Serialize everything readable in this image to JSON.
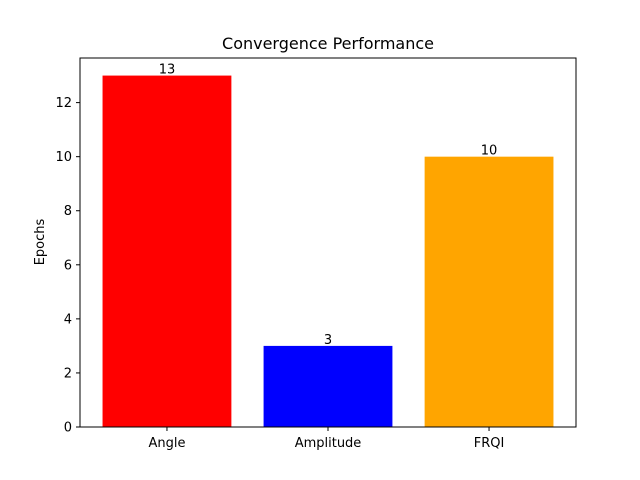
{
  "chart_data": {
    "type": "bar",
    "title": "Convergence Performance",
    "xlabel": "",
    "ylabel": "Epochs",
    "categories": [
      "Angle",
      "Amplitude",
      "FRQI"
    ],
    "values": [
      13,
      3,
      10
    ],
    "data_labels": [
      "13",
      "3",
      "10"
    ],
    "colors": [
      "#ff0000",
      "#0000ff",
      "#ffa500"
    ],
    "ylim": [
      0,
      13.65
    ],
    "yticks": [
      0,
      2,
      4,
      6,
      8,
      10,
      12
    ],
    "grid": false
  }
}
